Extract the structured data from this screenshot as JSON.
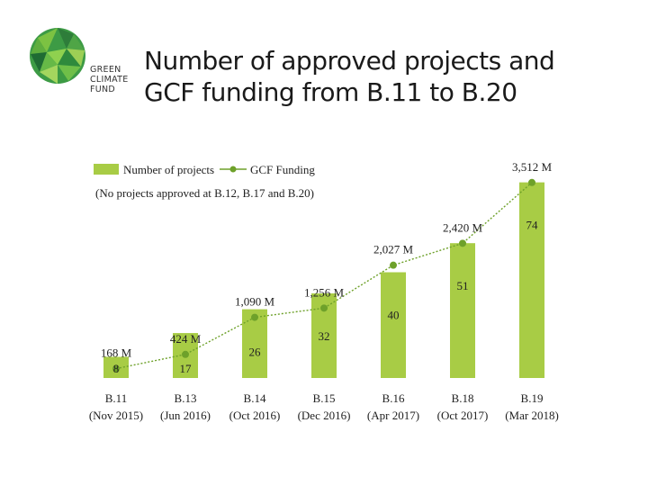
{
  "logo": {
    "lines": [
      "GREEN",
      "CLIMATE",
      "FUND"
    ]
  },
  "title": {
    "line1": "Number of approved projects and",
    "line2": "GCF funding from B.11 to B.20"
  },
  "chart_data": {
    "type": "bar",
    "categories": [
      "B.11",
      "B.13",
      "B.14",
      "B.15",
      "B.16",
      "B.18",
      "B.19"
    ],
    "category_dates": [
      "(Nov 2015)",
      "(Jun 2016)",
      "(Oct 2016)",
      "(Dec 2016)",
      "(Apr 2017)",
      "(Oct 2017)",
      "(Mar 2018)"
    ],
    "series": [
      {
        "name": "Number of projects",
        "kind": "bar",
        "color": "#a8cc45",
        "values": [
          8,
          17,
          26,
          32,
          40,
          51,
          74
        ]
      },
      {
        "name": "GCF Funding",
        "kind": "line",
        "color": "#6ea12a",
        "values": [
          168,
          424,
          1090,
          1256,
          2027,
          2420,
          3512
        ],
        "labels": [
          "168 M",
          "424 M",
          "1,090 M",
          "1,256 M",
          "2,027 M",
          "2,420 M",
          "3,512 M"
        ]
      }
    ],
    "legend_note": "(No projects approved at B.12, B.17 and B.20)",
    "legend_position": "top-left",
    "bar_ylim": [
      0,
      80
    ],
    "line_ylim": [
      0,
      3800
    ],
    "grid": false
  }
}
